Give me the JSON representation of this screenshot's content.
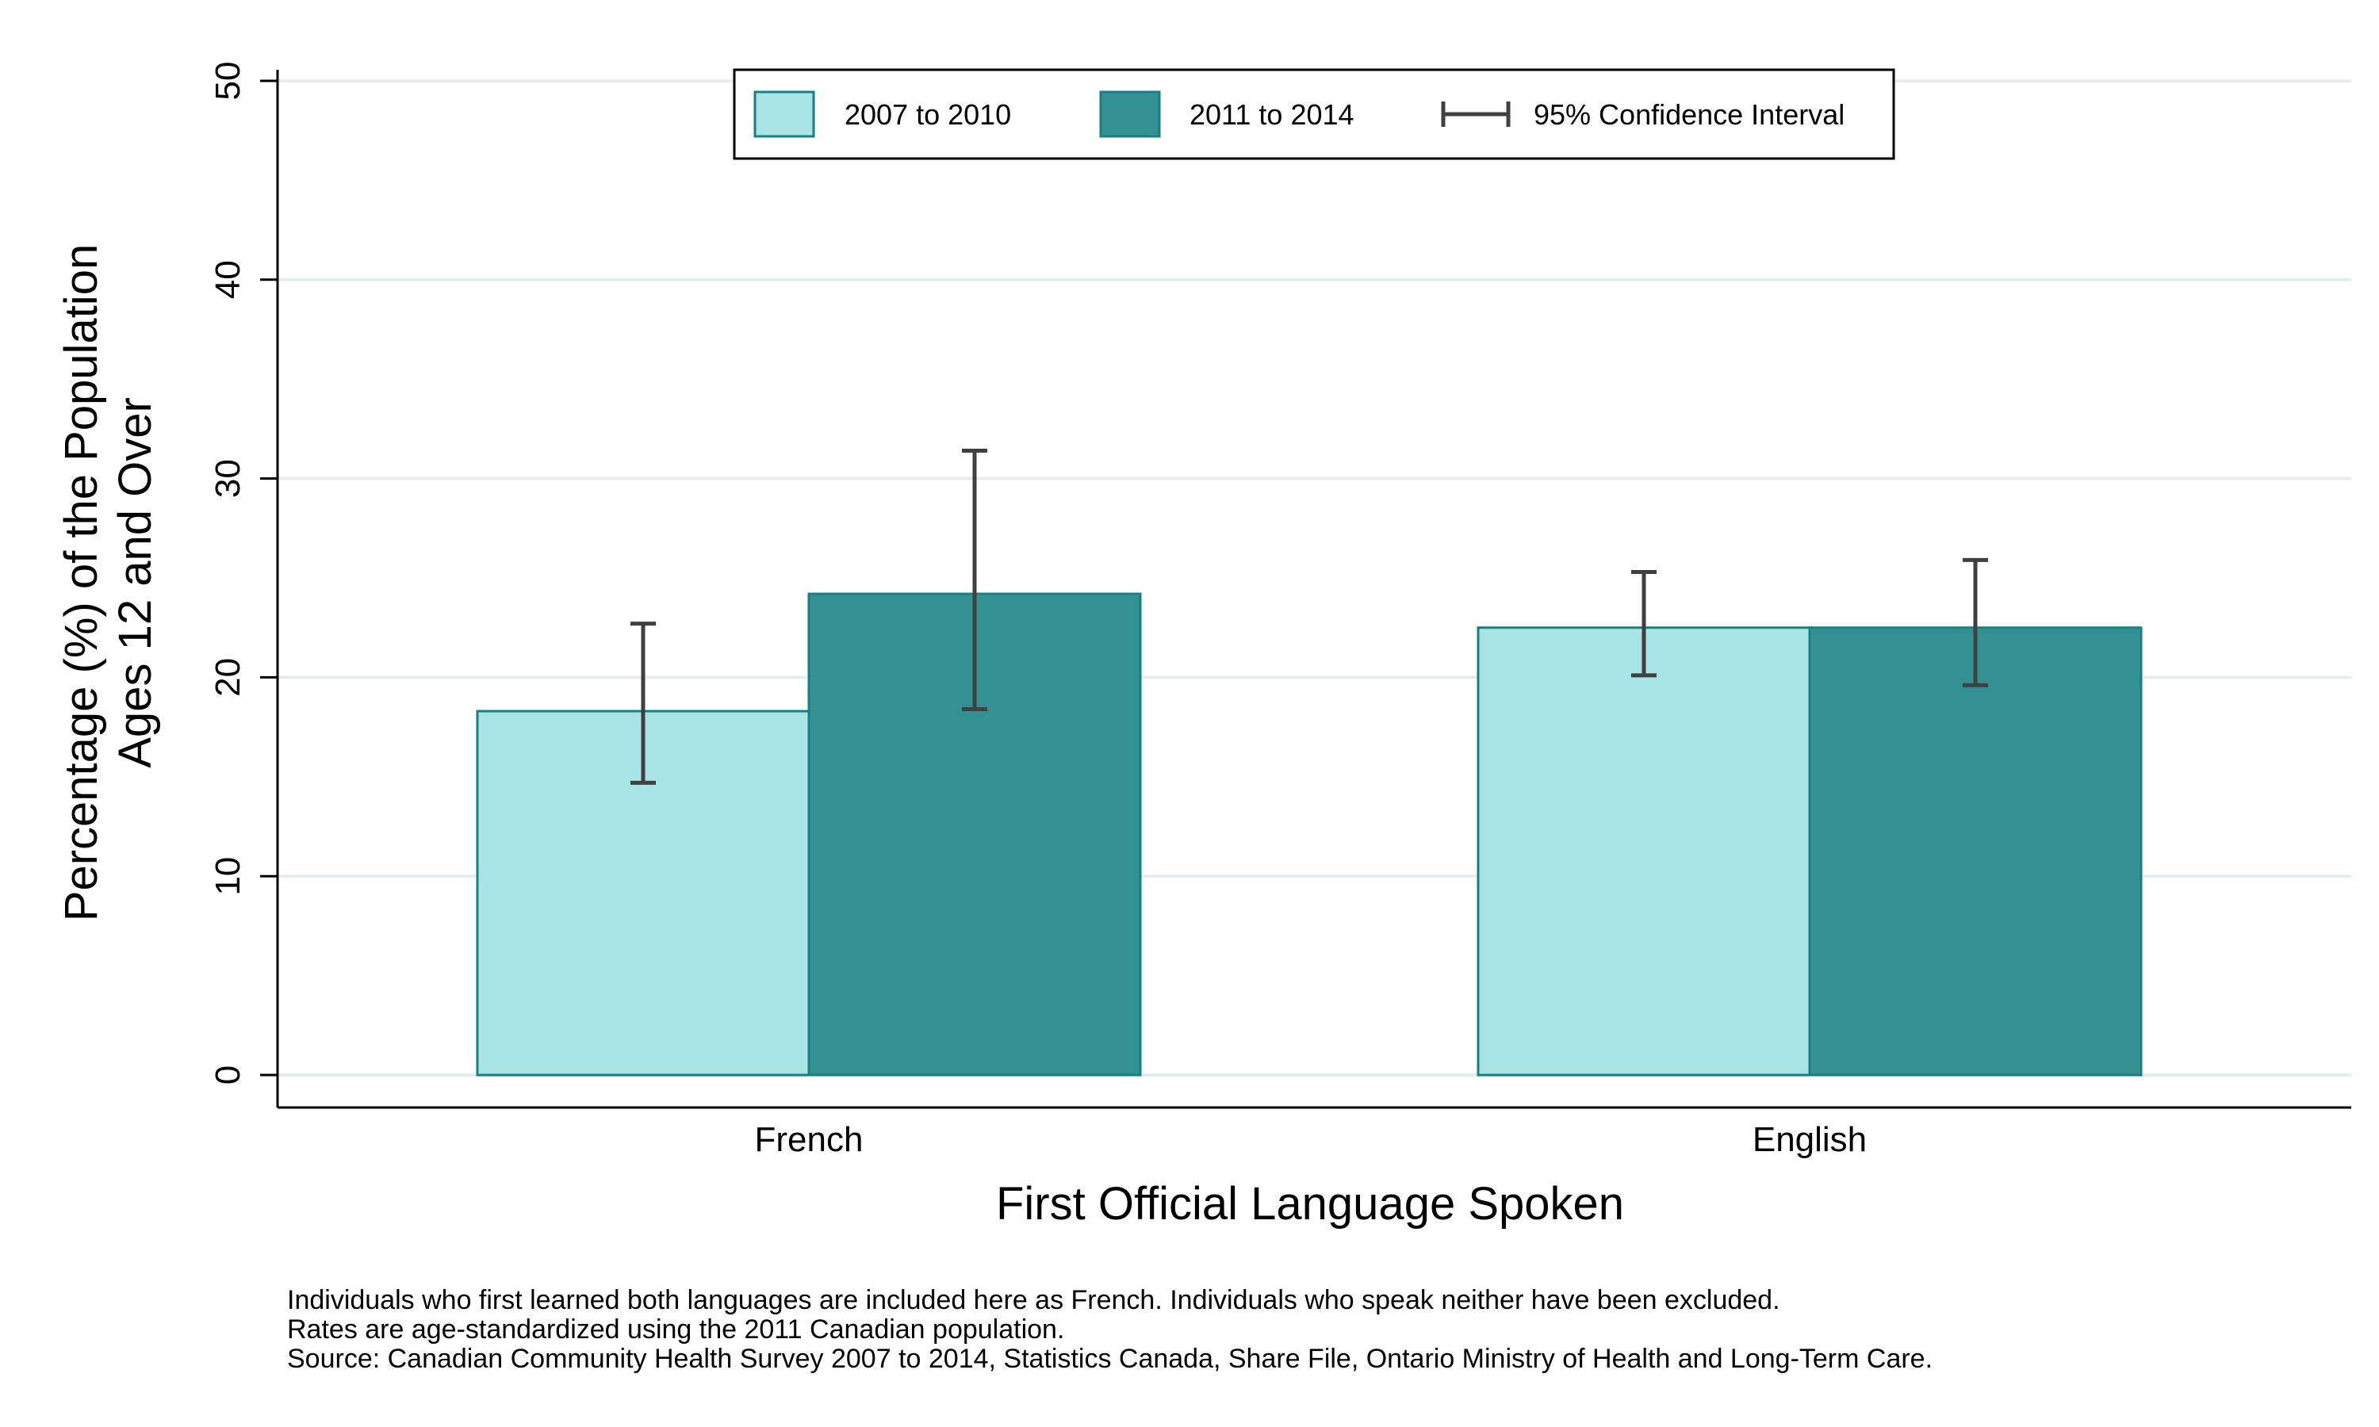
{
  "chart_data": {
    "type": "bar",
    "title": "",
    "xlabel": "First Official Language Spoken",
    "ylabel_lines": [
      "Percentage (%) of the Population",
      "Ages 12 and Over"
    ],
    "categories": [
      "French",
      "English"
    ],
    "ylim": [
      0,
      50
    ],
    "yticks": [
      0,
      10,
      20,
      30,
      40,
      50
    ],
    "grid": true,
    "legend_position": "top-center",
    "series": [
      {
        "name": "2007 to 2010",
        "color": "#a8e4e6",
        "values": [
          18.3,
          22.5
        ],
        "ci_low": [
          14.7,
          20.1
        ],
        "ci_high": [
          22.7,
          25.3
        ]
      },
      {
        "name": "2011 to 2014",
        "color": "#339194",
        "values": [
          24.2,
          22.5
        ],
        "ci_low": [
          18.4,
          19.6
        ],
        "ci_high": [
          31.4,
          25.9
        ]
      }
    ],
    "ci_legend_label": "95% Confidence Interval"
  },
  "notes": [
    "Individuals who first learned both languages are included here as French.  Individuals who speak neither have been excluded.",
    "Rates are age-standardized using the 2011 Canadian population.",
    "Source: Canadian Community Health Survey 2007 to 2014, Statistics Canada, Share File, Ontario Ministry of Health and Long-Term Care."
  ]
}
